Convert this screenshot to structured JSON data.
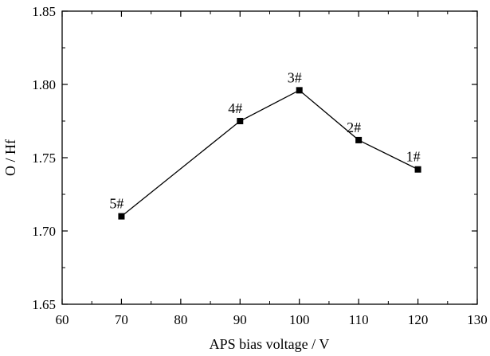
{
  "chart_data": {
    "type": "line",
    "title": "",
    "xlabel": "APS bias voltage / V",
    "ylabel": "O / Hf",
    "xlim": [
      60,
      130
    ],
    "ylim": [
      1.65,
      1.85
    ],
    "x_ticks": [
      60,
      70,
      80,
      90,
      100,
      110,
      120,
      130
    ],
    "y_ticks": [
      "1.65",
      "1.70",
      "1.75",
      "1.80",
      "1.85"
    ],
    "grid": false,
    "legend": "none",
    "series": [
      {
        "x": [
          70,
          90,
          100,
          110,
          120
        ],
        "y": [
          1.71,
          1.775,
          1.796,
          1.762,
          1.742
        ],
        "point_labels": [
          "5#",
          "4#",
          "3#",
          "2#",
          "1#"
        ],
        "color": "#000000",
        "marker": "square"
      }
    ]
  }
}
